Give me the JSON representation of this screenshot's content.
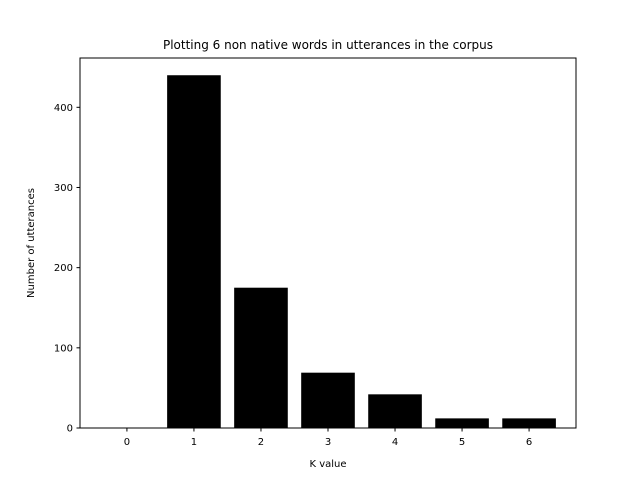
{
  "chart_data": {
    "type": "bar",
    "title": "Plotting 6 non native words in utterances in the corpus",
    "xlabel": "K value",
    "ylabel": "Number of utterances",
    "categories": [
      "0",
      "1",
      "2",
      "3",
      "4",
      "5",
      "6"
    ],
    "values": [
      0,
      440,
      175,
      69,
      42,
      12,
      12
    ],
    "xlim": [
      -0.7,
      6.7
    ],
    "ylim": [
      0,
      461.5
    ],
    "yticks": [
      0,
      100,
      200,
      300,
      400
    ],
    "bar_color": "#000000",
    "grid": false,
    "legend": "none"
  }
}
